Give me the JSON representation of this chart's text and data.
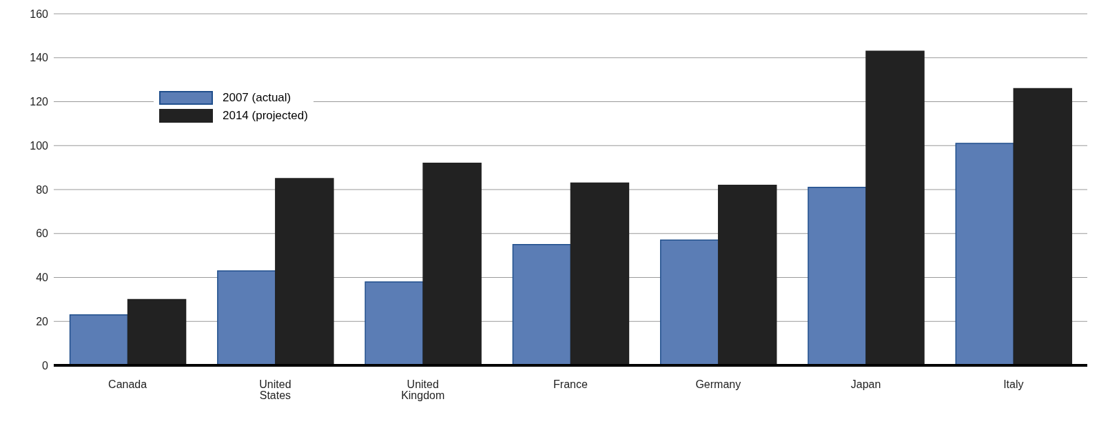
{
  "chart_data": {
    "type": "bar",
    "categories": [
      "Canada",
      "United States",
      "United Kingdom",
      "France",
      "Germany",
      "Japan",
      "Italy"
    ],
    "series": [
      {
        "name": "2007 (actual)",
        "color": "#5b7db5",
        "values": [
          23,
          43,
          38,
          55,
          57,
          81,
          101
        ]
      },
      {
        "name": "2014 (projected)",
        "color": "#222222",
        "values": [
          30,
          85,
          92,
          83,
          82,
          143,
          126
        ]
      }
    ],
    "ylim": [
      0,
      160
    ],
    "yticks": [
      0,
      20,
      40,
      60,
      80,
      100,
      120,
      140,
      160
    ],
    "grid": "y",
    "legend": "top left"
  }
}
